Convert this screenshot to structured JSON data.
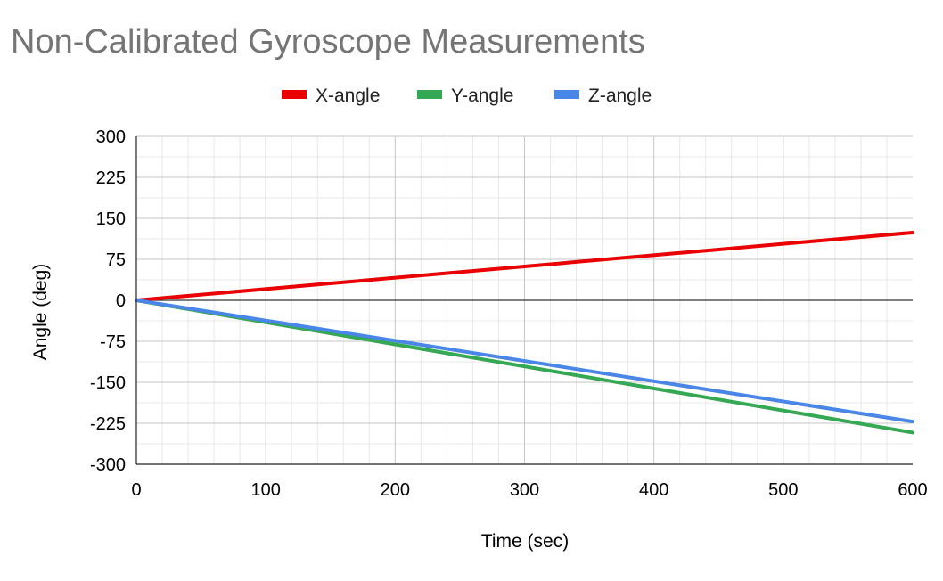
{
  "chart_data": {
    "type": "line",
    "title": "Non-Calibrated Gyroscope Measurements",
    "xlabel": "Time (sec)",
    "ylabel": "Angle (deg)",
    "xlim": [
      0,
      600
    ],
    "ylim": [
      -300,
      300
    ],
    "x_ticks": [
      "0",
      "100",
      "200",
      "300",
      "400",
      "500",
      "600"
    ],
    "y_ticks": [
      "300",
      "225",
      "150",
      "75",
      "0",
      "-75",
      "-150",
      "-225",
      "-300"
    ],
    "grid": true,
    "legend_position": "top",
    "series": [
      {
        "name": "X-angle",
        "color": "#ea0000",
        "x": [
          0,
          600
        ],
        "y": [
          0,
          124
        ]
      },
      {
        "name": "Y-angle",
        "color": "#34a853",
        "x": [
          0,
          600
        ],
        "y": [
          0,
          -242
        ]
      },
      {
        "name": "Z-angle",
        "color": "#4a86e8",
        "x": [
          0,
          600
        ],
        "y": [
          0,
          -222
        ]
      }
    ]
  }
}
